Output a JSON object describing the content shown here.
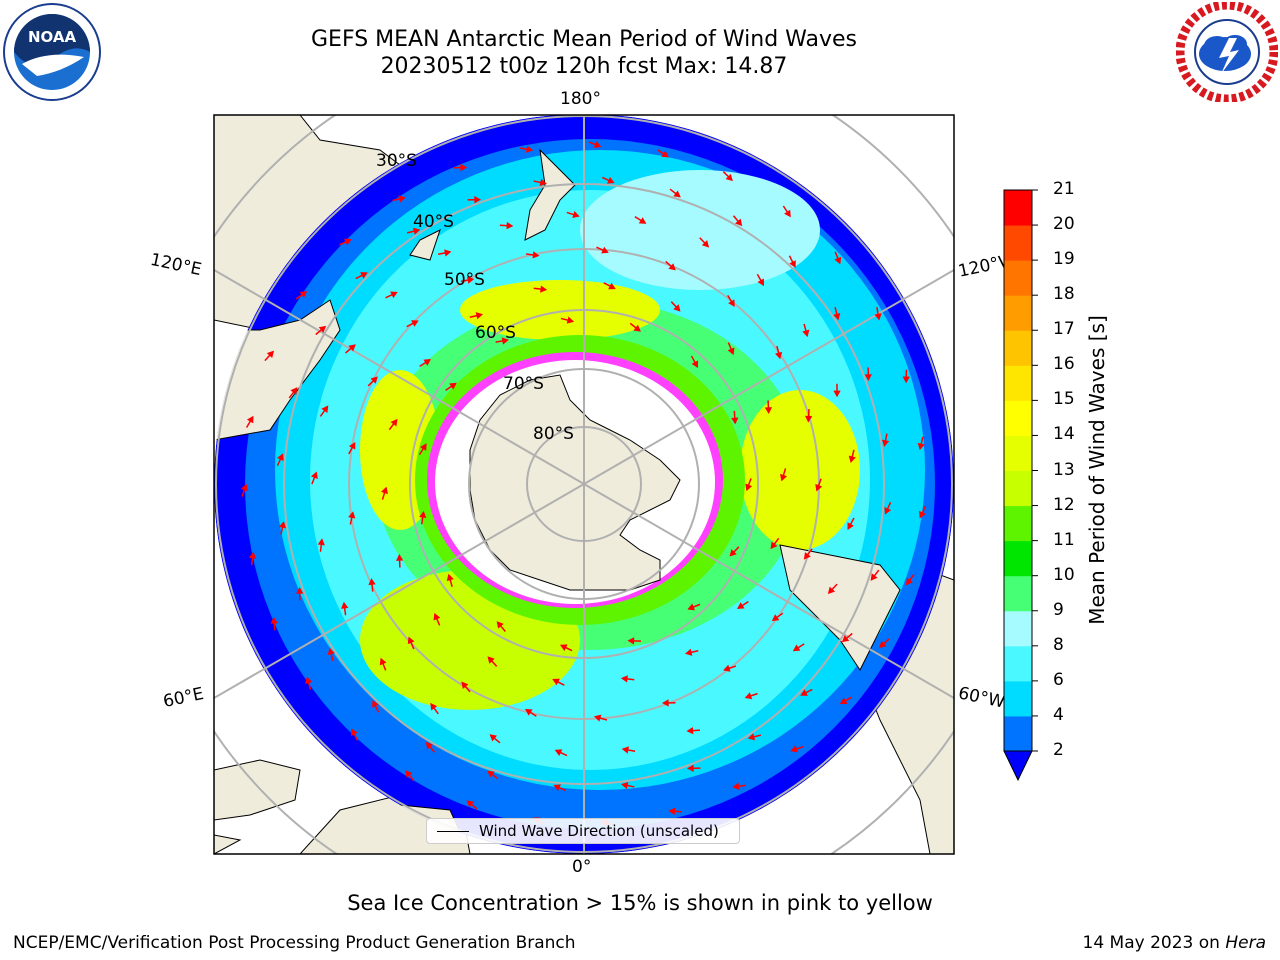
{
  "header": {
    "title_line1": "GEFS MEAN Antarctic Mean Period of Wind Waves",
    "title_line2": "20230512 t00z 120h fcst   Max: 14.87"
  },
  "logos": {
    "left": "NOAA logo",
    "right": "National Weather Service logo"
  },
  "map": {
    "projection": "south-polar-stereographic",
    "longitude_labels": {
      "top": "180°",
      "bottom": "0°",
      "upper_left": "120°E",
      "upper_right": "120°W",
      "lower_left": "60°E",
      "lower_right": "60°W"
    },
    "latitude_labels": [
      "30°S",
      "40°S",
      "50°S",
      "60°S",
      "70°S",
      "80°S"
    ],
    "legend": "Wind Wave Direction (unscaled)",
    "arrow_color": "#ff0000",
    "land_color": "#efecdc"
  },
  "colorbar": {
    "label": "Mean Period of Wind Waves [s]",
    "ticks": [
      "2",
      "4",
      "6",
      "8",
      "9",
      "10",
      "11",
      "12",
      "13",
      "14",
      "15",
      "16",
      "17",
      "18",
      "19",
      "20",
      "21"
    ],
    "colors": [
      "#0073ff",
      "#00dcff",
      "#4af9ff",
      "#a5fbff",
      "#46ff75",
      "#00e600",
      "#5ef400",
      "#c8ff00",
      "#e6ff00",
      "#ffff00",
      "#ffe600",
      "#ffc400",
      "#ff9d00",
      "#ff7500",
      "#ff4800",
      "#ff0000"
    ],
    "under_color": "#0000ff"
  },
  "notes": {
    "ice": "Sea Ice Concentration > 15% is shown in pink to yellow",
    "credit": "NCEP/EMC/Verification Post Processing Product Generation Branch",
    "date_prefix": "14 May 2023 on",
    "machine": "Hera"
  }
}
